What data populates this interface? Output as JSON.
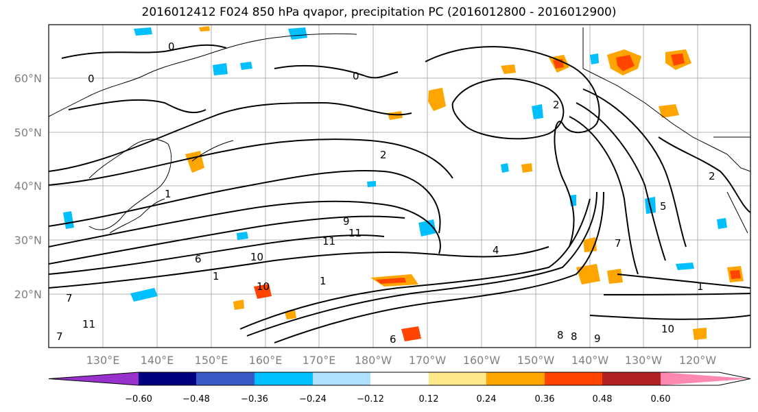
{
  "title": "2016012412 F024 850 hPa qvapor, precipitation PC (2016012800 - 2016012900)",
  "lat_labels": [
    "60°N",
    "50°N",
    "40°N",
    "30°N",
    "20°N"
  ],
  "lon_labels": [
    "130°E",
    "140°E",
    "150°E",
    "160°E",
    "170°E",
    "180°W",
    "170°W",
    "160°W",
    "150°W",
    "140°W",
    "130°W",
    "120°W"
  ],
  "colorbar": {
    "ticks": [
      "−0.60",
      "−0.48",
      "−0.36",
      "−0.24",
      "−0.12",
      "0.12",
      "0.24",
      "0.36",
      "0.48",
      "0.60"
    ],
    "colors": [
      "#9932cc",
      "#000080",
      "#3a5ac8",
      "#00bfff",
      "#b0e0ff",
      "#ffffff",
      "#ffe88a",
      "#ffa500",
      "#ff4500",
      "#b22222",
      "#ff88b0"
    ]
  },
  "contour_labels": [
    "0",
    "0",
    "0",
    "1",
    "1",
    "2",
    "2",
    "2",
    "5",
    "7",
    "7",
    "4",
    "6",
    "10",
    "11",
    "11",
    "9",
    "10",
    "1",
    "1",
    "10",
    "11",
    "7",
    "6",
    "8",
    "8",
    "9"
  ]
}
